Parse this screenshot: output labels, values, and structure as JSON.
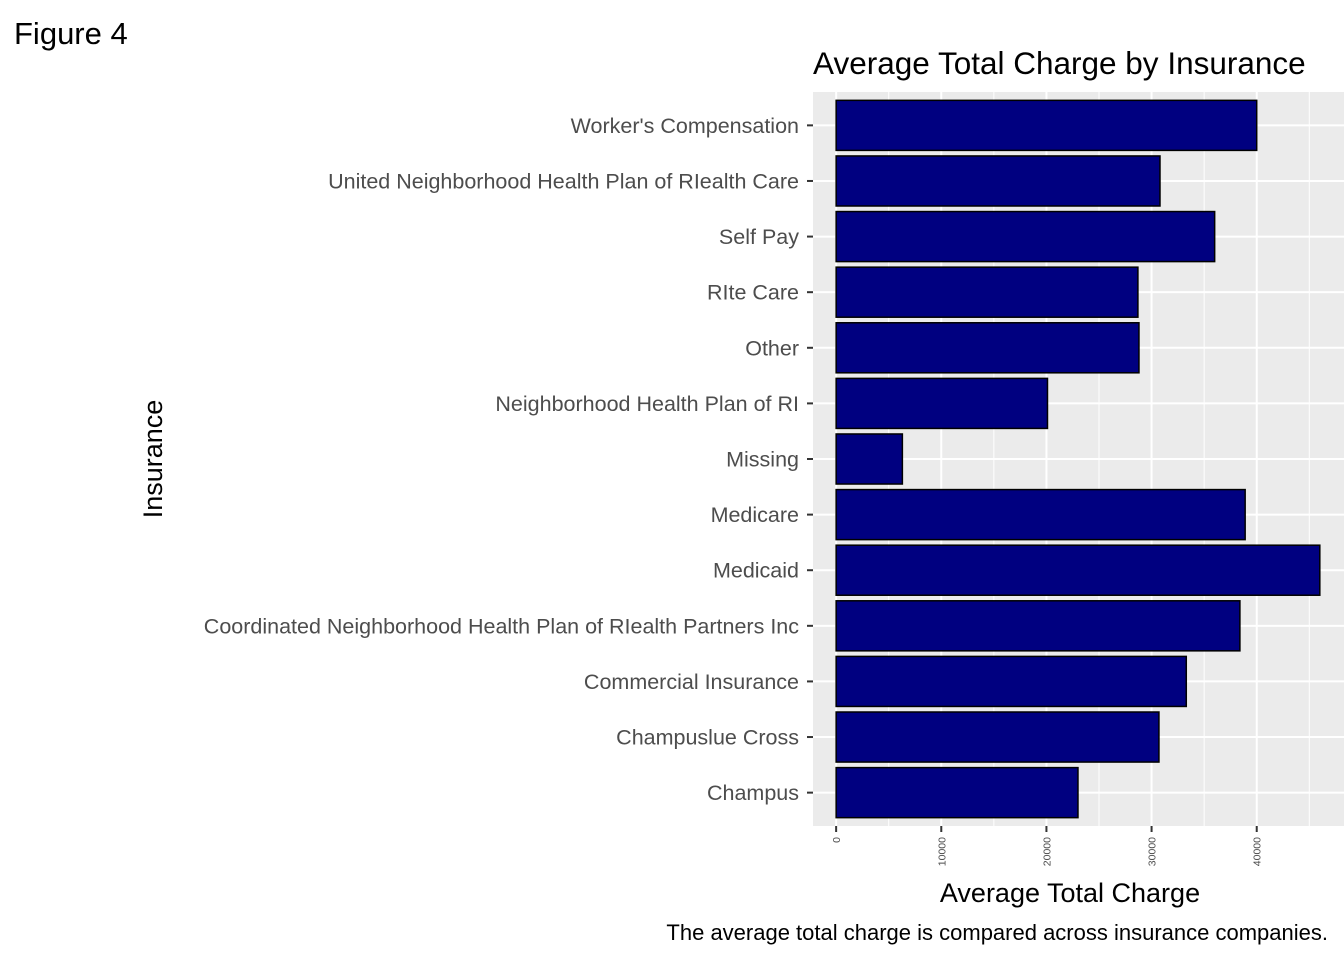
{
  "figure_label": "Figure 4",
  "caption": "The average total charge is compared across insurance companies.",
  "colors": {
    "bar_fill": "#000080",
    "bar_stroke": "#000000",
    "panel_bg": "#EBEBEB",
    "grid": "#FFFFFF",
    "tick_text": "#4D4D4D"
  },
  "chart_data": {
    "type": "bar",
    "orientation": "horizontal",
    "title": "Average Total Charge by Insurance",
    "xlabel": "Average Total Charge",
    "ylabel": "Insurance",
    "categories": [
      "Champus",
      "Champuslue Cross",
      "Commercial Insurance",
      "Coordinated Neighborhood Health Plan of RIealth Partners Inc",
      "Medicaid",
      "Medicare",
      "Missing",
      "Neighborhood Health Plan of RI",
      "Other",
      "RIte Care",
      "Self Pay",
      "United Neighborhood Health Plan of RIealth Care",
      "Worker's Compensation"
    ],
    "values": [
      23000,
      30700,
      33300,
      38400,
      46000,
      38900,
      6300,
      20100,
      28800,
      28700,
      36000,
      30800,
      40000
    ],
    "x_ticks": [
      0,
      10000,
      20000,
      30000,
      40000
    ],
    "xlim": [
      -2200,
      48300
    ],
    "grid": true,
    "legend": "none"
  }
}
